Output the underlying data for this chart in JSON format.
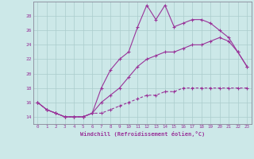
{
  "xlabel": "Windchill (Refroidissement éolien,°C)",
  "background_color": "#cce8e8",
  "line_color": "#993399",
  "x_hours": [
    0,
    1,
    2,
    3,
    4,
    5,
    6,
    7,
    8,
    9,
    10,
    11,
    12,
    13,
    14,
    15,
    16,
    17,
    18,
    19,
    20,
    21,
    22,
    23
  ],
  "series1": [
    16,
    15,
    14.5,
    14,
    14,
    14,
    14.5,
    18,
    20.5,
    22,
    23,
    26.5,
    29.5,
    27.5,
    29.5,
    26.5,
    27,
    27.5,
    27.5,
    27,
    26,
    25,
    23,
    21
  ],
  "series2": [
    16,
    15,
    14.5,
    14,
    14,
    14,
    14.5,
    16,
    17,
    18,
    19.5,
    21,
    22,
    22.5,
    23,
    23,
    23.5,
    24,
    24,
    24.5,
    25,
    24.5,
    23,
    21
  ],
  "series3": [
    16,
    15,
    14.5,
    14,
    14,
    14,
    14.5,
    14.5,
    15,
    15.5,
    16,
    16.5,
    17,
    17,
    17.5,
    17.5,
    18,
    18,
    18,
    18,
    18,
    18,
    18,
    18
  ],
  "ylim": [
    13,
    30
  ],
  "yticks": [
    14,
    16,
    18,
    20,
    22,
    24,
    26,
    28
  ],
  "xlim": [
    -0.5,
    23.5
  ],
  "xticks": [
    0,
    1,
    2,
    3,
    4,
    5,
    6,
    7,
    8,
    9,
    10,
    11,
    12,
    13,
    14,
    15,
    16,
    17,
    18,
    19,
    20,
    21,
    22,
    23
  ]
}
